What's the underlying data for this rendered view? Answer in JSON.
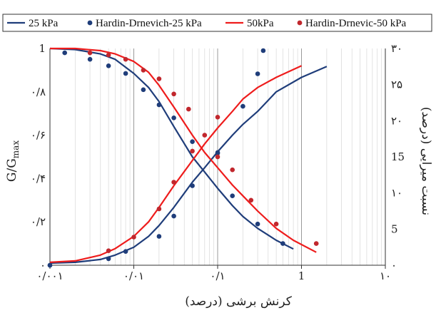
{
  "chart_data": {
    "type": "line",
    "x_scale": "log",
    "xlim": [
      0.001,
      10
    ],
    "ylim_left": [
      0,
      1
    ],
    "ylim_right": [
      0,
      30
    ],
    "grid": "vertical",
    "legend_position": "top",
    "xlabel": "کرنش برشی (درصد)",
    "ylabel_left": "G/G_max",
    "ylabel_left_main": "G/G",
    "ylabel_left_sub": "max",
    "ylabel_right": "نسبت میرایی (درصد)",
    "x_tick_labels": [
      "۰/۰۰۱",
      "۰/۰۱",
      "۰/۱",
      "1",
      "۱۰"
    ],
    "y_left_tick_labels": [
      "۰",
      "۰/۲",
      "۰/۴",
      "۰/۶",
      "۰/۸",
      "1"
    ],
    "y_right_tick_labels": [
      "۰",
      "5",
      "۱۰",
      "15",
      "۲۰",
      "۲۵",
      "۳۰"
    ],
    "legend": [
      {
        "label": "25 kPa",
        "marker": "line",
        "color": "#1f3d7a"
      },
      {
        "label": "Hardin-Drnevich-25 kPa",
        "marker": "dot",
        "color": "#1f3d7a"
      },
      {
        "label": "50kPa",
        "marker": "line",
        "color": "#ee1c1c"
      },
      {
        "label": "Hardin-Drnevic-50 kPa",
        "marker": "dot",
        "color": "#c1272d"
      }
    ],
    "series": [
      {
        "name": "25 kPa",
        "kind": "line",
        "color": "#1f3d7a",
        "role": "modulus",
        "axis": "left",
        "x": [
          0.001,
          0.002,
          0.004,
          0.006,
          0.01,
          0.015,
          0.02,
          0.03,
          0.05,
          0.07,
          0.1,
          0.15,
          0.2,
          0.3,
          0.5,
          0.8
        ],
        "y": [
          1.0,
          0.995,
          0.975,
          0.95,
          0.885,
          0.82,
          0.755,
          0.64,
          0.5,
          0.43,
          0.355,
          0.275,
          0.225,
          0.17,
          0.115,
          0.075
        ]
      },
      {
        "name": "25 kPa",
        "kind": "line",
        "color": "#1f3d7a",
        "role": "damping",
        "axis": "right",
        "x": [
          0.001,
          0.002,
          0.004,
          0.006,
          0.01,
          0.015,
          0.02,
          0.03,
          0.05,
          0.07,
          0.1,
          0.15,
          0.2,
          0.3,
          0.5,
          1.0,
          2.0
        ],
        "y": [
          0.3,
          0.4,
          0.8,
          1.4,
          2.5,
          4.0,
          5.5,
          8.0,
          11.5,
          13.5,
          15.7,
          18.0,
          19.5,
          21.3,
          24.0,
          26.0,
          27.5
        ]
      },
      {
        "name": "50kPa",
        "kind": "line",
        "color": "#ee1c1c",
        "role": "modulus",
        "axis": "left",
        "x": [
          0.001,
          0.002,
          0.004,
          0.006,
          0.01,
          0.015,
          0.02,
          0.03,
          0.05,
          0.07,
          0.1,
          0.15,
          0.2,
          0.3,
          0.5,
          0.8,
          1.5
        ],
        "y": [
          1.0,
          1.0,
          0.99,
          0.975,
          0.94,
          0.89,
          0.83,
          0.73,
          0.6,
          0.52,
          0.45,
          0.37,
          0.32,
          0.25,
          0.17,
          0.115,
          0.06
        ]
      },
      {
        "name": "50kPa",
        "kind": "line",
        "color": "#ee1c1c",
        "role": "damping",
        "axis": "right",
        "x": [
          0.001,
          0.002,
          0.004,
          0.006,
          0.01,
          0.015,
          0.02,
          0.03,
          0.05,
          0.07,
          0.1,
          0.15,
          0.2,
          0.3,
          0.5,
          1.0
        ],
        "y": [
          0.4,
          0.6,
          1.4,
          2.3,
          4.0,
          6.0,
          8.0,
          11.0,
          14.5,
          16.8,
          19.0,
          21.3,
          23.0,
          24.6,
          26.0,
          27.6
        ]
      },
      {
        "name": "Hardin-Drnevich-25 kPa",
        "kind": "points",
        "color": "#1f3d7a",
        "role": "modulus",
        "axis": "left",
        "x": [
          0.001,
          0.0015,
          0.003,
          0.005,
          0.008,
          0.013,
          0.02,
          0.03,
          0.05,
          0.1,
          0.15,
          0.3,
          0.6
        ],
        "y": [
          0.0,
          0.98,
          0.95,
          0.92,
          0.885,
          0.81,
          0.74,
          0.68,
          0.57,
          0.52,
          0.32,
          0.19,
          0.1
        ]
      },
      {
        "name": "Hardin-Drnevich-25 kPa",
        "kind": "points",
        "color": "#1f3d7a",
        "role": "damping",
        "axis": "right",
        "x": [
          0.001,
          0.005,
          0.008,
          0.02,
          0.03,
          0.05,
          0.1,
          0.2,
          0.3,
          0.35
        ],
        "y": [
          0.0,
          0.9,
          1.9,
          4.0,
          6.8,
          11.0,
          15.5,
          22.0,
          26.5,
          29.7
        ]
      },
      {
        "name": "Hardin-Drnevic-50 kPa",
        "kind": "points",
        "color": "#c1272d",
        "role": "modulus",
        "axis": "left",
        "x": [
          0.003,
          0.005,
          0.008,
          0.013,
          0.02,
          0.03,
          0.045,
          0.07,
          0.1,
          0.15,
          0.25,
          0.5,
          1.5
        ],
        "y": [
          0.98,
          0.97,
          0.95,
          0.9,
          0.86,
          0.79,
          0.72,
          0.6,
          0.5,
          0.44,
          0.3,
          0.19,
          0.1
        ]
      },
      {
        "name": "Hardin-Drnevic-50 kPa",
        "kind": "points",
        "color": "#c1272d",
        "role": "damping",
        "axis": "right",
        "x": [
          0.005,
          0.01,
          0.02,
          0.03,
          0.05,
          0.1
        ],
        "y": [
          2.0,
          3.9,
          7.8,
          11.5,
          15.8,
          20.5
        ]
      }
    ]
  }
}
